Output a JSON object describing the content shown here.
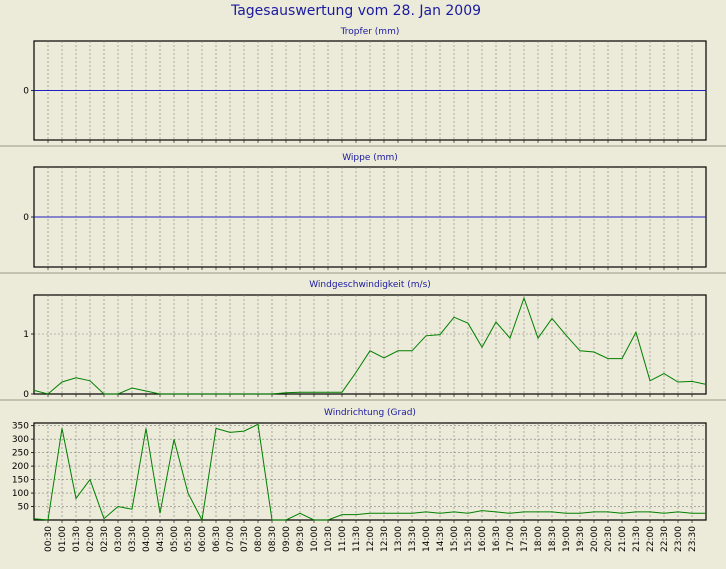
{
  "page_title": "Tagesauswertung vom 28. Jan 2009",
  "colors": {
    "background": "#ecead8",
    "title": "#1a1aa0",
    "line": "#008000",
    "zero_line": "#2020c0",
    "grid": "#808080",
    "separator": "#9a9a8a"
  },
  "chart_data": [
    {
      "type": "line",
      "title": "Tropfer (mm)",
      "x": [
        "00:30",
        "01:00",
        "01:30",
        "02:00",
        "02:30",
        "03:00",
        "03:30",
        "04:00",
        "04:30",
        "05:00",
        "05:30",
        "06:00",
        "06:30",
        "07:00",
        "07:30",
        "08:00",
        "08:30",
        "09:00",
        "09:30",
        "10:00",
        "10:30",
        "11:00",
        "11:30",
        "12:00",
        "12:30",
        "13:00",
        "13:30",
        "14:00",
        "14:30",
        "15:00",
        "15:30",
        "16:00",
        "16:30",
        "17:00",
        "17:30",
        "18:00",
        "18:30",
        "19:00",
        "19:30",
        "20:00",
        "20:30",
        "21:00",
        "21:30",
        "22:00",
        "22:30",
        "23:00",
        "23:30"
      ],
      "series": [],
      "y_ticks": [
        0
      ],
      "ylim": [
        -1,
        1
      ],
      "zero_line": true,
      "grid": true
    },
    {
      "type": "line",
      "title": "Wippe (mm)",
      "x": [
        "00:30",
        "01:00",
        "01:30",
        "02:00",
        "02:30",
        "03:00",
        "03:30",
        "04:00",
        "04:30",
        "05:00",
        "05:30",
        "06:00",
        "06:30",
        "07:00",
        "07:30",
        "08:00",
        "08:30",
        "09:00",
        "09:30",
        "10:00",
        "10:30",
        "11:00",
        "11:30",
        "12:00",
        "12:30",
        "13:00",
        "13:30",
        "14:00",
        "14:30",
        "15:00",
        "15:30",
        "16:00",
        "16:30",
        "17:00",
        "17:30",
        "18:00",
        "18:30",
        "19:00",
        "19:30",
        "20:00",
        "20:30",
        "21:00",
        "21:30",
        "22:00",
        "22:30",
        "23:00",
        "23:30"
      ],
      "series": [],
      "y_ticks": [
        0
      ],
      "ylim": [
        -1,
        1
      ],
      "zero_line": true,
      "grid": true
    },
    {
      "type": "line",
      "title": "Windgeschwindigkeit (m/s)",
      "x": [
        "00:00",
        "00:30",
        "01:00",
        "01:30",
        "02:00",
        "02:30",
        "03:00",
        "03:30",
        "04:00",
        "04:30",
        "05:00",
        "05:30",
        "06:00",
        "06:30",
        "07:00",
        "07:30",
        "08:00",
        "08:30",
        "09:00",
        "09:30",
        "10:00",
        "10:30",
        "11:00",
        "11:30",
        "12:00",
        "12:30",
        "13:00",
        "13:30",
        "14:00",
        "14:30",
        "15:00",
        "15:30",
        "16:00",
        "16:30",
        "17:00",
        "17:30",
        "18:00",
        "18:30",
        "19:00",
        "19:30",
        "20:00",
        "20:30",
        "21:00",
        "21:30",
        "22:00",
        "22:30",
        "23:00",
        "23:30",
        "24:00"
      ],
      "series": [
        {
          "values": [
            0.06,
            0.0,
            0.2,
            0.27,
            0.22,
            0.0,
            0.0,
            0.1,
            0.05,
            0.0,
            0.0,
            0.0,
            0.0,
            0.0,
            0.0,
            0.0,
            0.0,
            0.0,
            0.02,
            0.03,
            0.03,
            0.03,
            0.03,
            0.36,
            0.72,
            0.6,
            0.72,
            0.72,
            0.97,
            0.99,
            1.28,
            1.18,
            0.78,
            1.2,
            0.93,
            1.6,
            0.93,
            1.26,
            0.98,
            0.72,
            0.7,
            0.59,
            0.59,
            1.03,
            0.22,
            0.34,
            0.2,
            0.21,
            0.16
          ]
        }
      ],
      "y_ticks": [
        0,
        1
      ],
      "ylim": [
        0,
        1.65
      ],
      "zero_line": false,
      "grid": true
    },
    {
      "type": "line",
      "title": "Windrichtung (Grad)",
      "x": [
        "00:00",
        "00:30",
        "01:00",
        "01:30",
        "02:00",
        "02:30",
        "03:00",
        "03:30",
        "04:00",
        "04:30",
        "05:00",
        "05:30",
        "06:00",
        "06:30",
        "07:00",
        "07:30",
        "08:00",
        "08:30",
        "09:00",
        "09:30",
        "10:00",
        "10:30",
        "11:00",
        "11:30",
        "12:00",
        "12:30",
        "13:00",
        "13:30",
        "14:00",
        "14:30",
        "15:00",
        "15:30",
        "16:00",
        "16:30",
        "17:00",
        "17:30",
        "18:00",
        "18:30",
        "19:00",
        "19:30",
        "20:00",
        "20:30",
        "21:00",
        "21:30",
        "22:00",
        "22:30",
        "23:00",
        "23:30",
        "24:00"
      ],
      "x_tick_labels": [
        "00:30",
        "01:00",
        "01:30",
        "02:00",
        "02:30",
        "03:00",
        "03:30",
        "04:00",
        "04:30",
        "05:00",
        "05:30",
        "06:00",
        "06:30",
        "07:00",
        "07:30",
        "08:00",
        "08:30",
        "09:00",
        "09:30",
        "10:00",
        "10:30",
        "11:00",
        "11:30",
        "12:00",
        "12:30",
        "13:00",
        "13:30",
        "14:00",
        "14:30",
        "15:00",
        "15:30",
        "16:00",
        "16:30",
        "17:00",
        "17:30",
        "18:00",
        "18:30",
        "19:00",
        "19:30",
        "20:00",
        "20:30",
        "21:00",
        "21:30",
        "22:00",
        "22:30",
        "23:00",
        "23:30"
      ],
      "series": [
        {
          "values": [
            5,
            0,
            340,
            80,
            150,
            5,
            50,
            40,
            340,
            25,
            300,
            100,
            0,
            340,
            325,
            330,
            355,
            0,
            0,
            25,
            0,
            0,
            20,
            20,
            25,
            25,
            25,
            25,
            30,
            25,
            30,
            25,
            35,
            30,
            25,
            30,
            30,
            30,
            25,
            25,
            30,
            30,
            25,
            30,
            30,
            25,
            30,
            25,
            25
          ]
        }
      ],
      "y_ticks": [
        50,
        100,
        150,
        200,
        250,
        300,
        350
      ],
      "ylim": [
        0,
        360
      ],
      "zero_line": false,
      "grid": true
    }
  ]
}
